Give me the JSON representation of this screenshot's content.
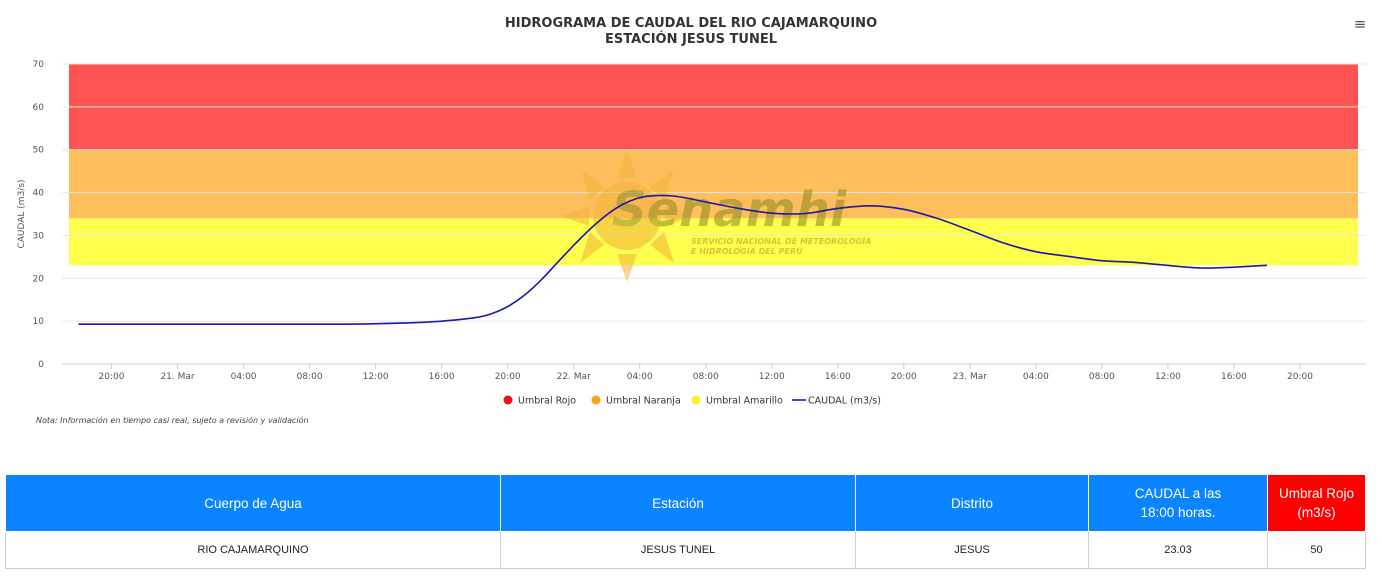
{
  "header": {
    "title_line1": "HIDROGRAMA DE CAUDAL DEL RIO CAJAMARQUINO",
    "title_line2": "ESTACIÓN JESUS TUNEL",
    "menu_icon": "hamburger-menu-icon"
  },
  "watermark": {
    "brand": "Senamhi",
    "line1": "SERVICIO NACIONAL DE METEOROLOGÍA",
    "line2": "E HIDROLOGÍA DEL PERÚ"
  },
  "note": "Nota: Información en tiempo casi real, sujeto a revisión y validación",
  "chart_data": {
    "type": "line",
    "title": "HIDROGRAMA DE CAUDAL DEL RIO CAJAMARQUINO",
    "subtitle": "ESTACIÓN JESUS TUNEL",
    "xlabel": "",
    "ylabel": "CAUDAL (m3/s)",
    "ylim": [
      0,
      70
    ],
    "yticks": [
      "0",
      "10",
      "20",
      "30",
      "40",
      "50",
      "60",
      "70"
    ],
    "xlim": [
      "2025-03-20 17:00",
      "2025-03-24 00:00"
    ],
    "xticks": [
      "20:00",
      "21. Mar",
      "04:00",
      "08:00",
      "12:00",
      "16:00",
      "20:00",
      "22. Mar",
      "04:00",
      "08:00",
      "12:00",
      "16:00",
      "20:00",
      "23. Mar",
      "04:00",
      "08:00",
      "12:00",
      "16:00",
      "20:00"
    ],
    "grid": true,
    "legend_position": "bottom-center",
    "bands": [
      {
        "name": "Umbral Amarillo",
        "from": 23,
        "to": 34,
        "color": "#ffff4d"
      },
      {
        "name": "Umbral Naranja",
        "from": 34,
        "to": 50,
        "color": "#ffbe5c"
      },
      {
        "name": "Umbral Rojo",
        "from": 50,
        "to": 70,
        "color": "#ff5353"
      }
    ],
    "legend": [
      {
        "name": "Umbral Rojo",
        "color": "#e8141a",
        "symbol": "circle"
      },
      {
        "name": "Umbral Naranja",
        "color": "#f7a21b",
        "symbol": "circle"
      },
      {
        "name": "Umbral Amarillo",
        "color": "#f5f520",
        "symbol": "circle"
      },
      {
        "name": "CAUDAL (m3/s)",
        "color": "#1a1aa6",
        "symbol": "line"
      }
    ],
    "series": [
      {
        "name": "CAUDAL (m3/s)",
        "color": "#1a1aa6",
        "x": [
          "2025-03-20 18:00",
          "2025-03-20 22:00",
          "2025-03-21 02:00",
          "2025-03-21 06:00",
          "2025-03-21 10:00",
          "2025-03-21 12:00",
          "2025-03-21 14:00",
          "2025-03-21 16:00",
          "2025-03-21 18:00",
          "2025-03-21 19:00",
          "2025-03-21 20:00",
          "2025-03-21 21:00",
          "2025-03-21 22:00",
          "2025-03-21 23:00",
          "2025-03-22 00:00",
          "2025-03-22 01:00",
          "2025-03-22 02:00",
          "2025-03-22 03:00",
          "2025-03-22 04:00",
          "2025-03-22 05:00",
          "2025-03-22 06:00",
          "2025-03-22 07:00",
          "2025-03-22 08:00",
          "2025-03-22 10:00",
          "2025-03-22 12:00",
          "2025-03-22 14:00",
          "2025-03-22 16:00",
          "2025-03-22 18:00",
          "2025-03-22 20:00",
          "2025-03-22 22:00",
          "2025-03-23 00:00",
          "2025-03-23 02:00",
          "2025-03-23 04:00",
          "2025-03-23 06:00",
          "2025-03-23 08:00",
          "2025-03-23 10:00",
          "2025-03-23 12:00",
          "2025-03-23 14:00",
          "2025-03-23 16:00",
          "2025-03-23 18:00"
        ],
        "values": [
          9.3,
          9.3,
          9.3,
          9.3,
          9.3,
          9.4,
          9.6,
          10.0,
          10.8,
          11.7,
          13.4,
          16.0,
          19.5,
          23.6,
          27.7,
          31.5,
          34.8,
          37.3,
          38.8,
          39.3,
          39.2,
          38.6,
          37.8,
          36.3,
          35.2,
          35.1,
          36.3,
          36.9,
          36.1,
          34.0,
          31.2,
          28.3,
          26.2,
          25.1,
          24.1,
          23.7,
          23.0,
          22.4,
          22.6,
          23.03
        ]
      }
    ]
  },
  "table": {
    "headers": [
      "Cuerpo de Agua",
      "Estación",
      "Distrito",
      "CAUDAL a las 18:00 horas.",
      "Umbral Rojo (m3/s)"
    ],
    "rows": [
      [
        "RIO CAJAMARQUINO",
        "JESUS TUNEL",
        "JESUS",
        "23.03",
        "50"
      ]
    ]
  }
}
